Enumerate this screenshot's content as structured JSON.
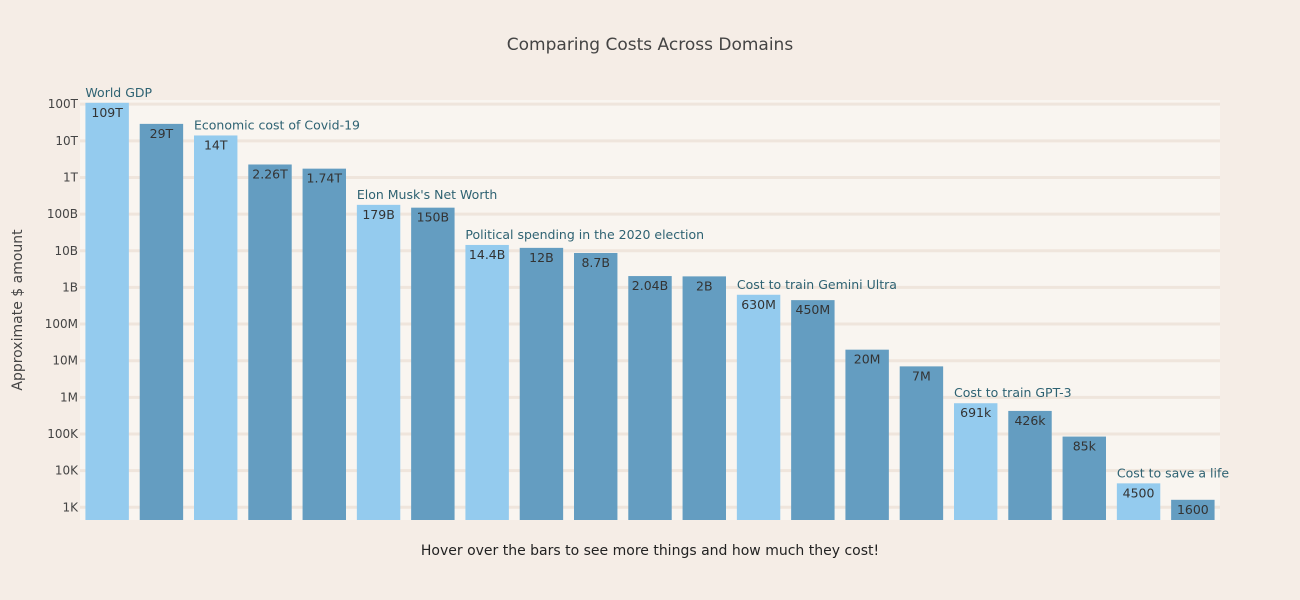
{
  "chart_data": {
    "type": "bar",
    "title": "Comparing Costs Across Domains",
    "xlabel": "Hover over the bars to see more things and how much they cost!",
    "ylabel": "Approximate $ amount",
    "y_scale": "log",
    "ylim": [
      450,
      130000000000000
    ],
    "grid": true,
    "y_ticks": [
      {
        "value": 1000,
        "label": "1K"
      },
      {
        "value": 10000,
        "label": "10K"
      },
      {
        "value": 100000,
        "label": "100K"
      },
      {
        "value": 1000000,
        "label": "1M"
      },
      {
        "value": 10000000,
        "label": "10M"
      },
      {
        "value": 100000000,
        "label": "100M"
      },
      {
        "value": 1000000000,
        "label": "1B"
      },
      {
        "value": 10000000000,
        "label": "10B"
      },
      {
        "value": 100000000000,
        "label": "100B"
      },
      {
        "value": 1000000000000,
        "label": "1T"
      },
      {
        "value": 10000000000000,
        "label": "10T"
      },
      {
        "value": 100000000000000,
        "label": "100T"
      }
    ],
    "colors": {
      "highlight": "#94cbee",
      "normal": "#649dc1"
    },
    "bars": [
      {
        "value": 109000000000000,
        "label": "109T",
        "highlight": true,
        "annotation": "World GDP"
      },
      {
        "value": 29000000000000,
        "label": "29T",
        "highlight": false,
        "annotation": ""
      },
      {
        "value": 14000000000000,
        "label": "14T",
        "highlight": true,
        "annotation": "Economic cost of Covid-19"
      },
      {
        "value": 2260000000000,
        "label": "2.26T",
        "highlight": false,
        "annotation": ""
      },
      {
        "value": 1740000000000,
        "label": "1.74T",
        "highlight": false,
        "annotation": ""
      },
      {
        "value": 179000000000,
        "label": "179B",
        "highlight": true,
        "annotation": "Elon Musk's Net Worth"
      },
      {
        "value": 150000000000,
        "label": "150B",
        "highlight": false,
        "annotation": ""
      },
      {
        "value": 14400000000,
        "label": "14.4B",
        "highlight": true,
        "annotation": "Political spending in the 2020 election"
      },
      {
        "value": 12000000000,
        "label": "12B",
        "highlight": false,
        "annotation": ""
      },
      {
        "value": 8700000000,
        "label": "8.7B",
        "highlight": false,
        "annotation": ""
      },
      {
        "value": 2040000000,
        "label": "2.04B",
        "highlight": false,
        "annotation": ""
      },
      {
        "value": 2000000000,
        "label": "2B",
        "highlight": false,
        "annotation": ""
      },
      {
        "value": 630000000,
        "label": "630M",
        "highlight": true,
        "annotation": "Cost to train Gemini Ultra"
      },
      {
        "value": 450000000,
        "label": "450M",
        "highlight": false,
        "annotation": ""
      },
      {
        "value": 20000000,
        "label": "20M",
        "highlight": false,
        "annotation": ""
      },
      {
        "value": 7000000,
        "label": "7M",
        "highlight": false,
        "annotation": ""
      },
      {
        "value": 691000,
        "label": "691k",
        "highlight": true,
        "annotation": "Cost to train GPT-3"
      },
      {
        "value": 426000,
        "label": "426k",
        "highlight": false,
        "annotation": ""
      },
      {
        "value": 85000,
        "label": "85k",
        "highlight": false,
        "annotation": ""
      },
      {
        "value": 4500,
        "label": "4500",
        "highlight": true,
        "annotation": "Cost to save a life"
      },
      {
        "value": 1600,
        "label": "1600",
        "highlight": false,
        "annotation": ""
      }
    ]
  }
}
